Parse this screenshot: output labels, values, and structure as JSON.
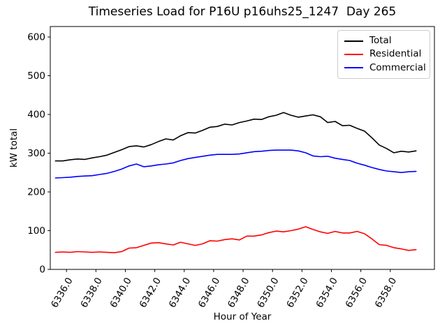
{
  "chart": {
    "title": "Timeseries Load for P16U p16uhs25_1247  Day 265",
    "xlabel": "Hour of Year",
    "ylabel": "kW total"
  },
  "chart_data": {
    "type": "line",
    "title": "Timeseries Load for P16U p16uhs25_1247  Day 265",
    "xlabel": "Hour of Year",
    "ylabel": "kW total",
    "xlim": [
      6334.9,
      6361.0
    ],
    "ylim": [
      0,
      627
    ],
    "grid": false,
    "legend_position": "upper right",
    "x_ticks": [
      6336,
      6338,
      6340,
      6342,
      6344,
      6346,
      6348,
      6350,
      6352,
      6354,
      6356,
      6358
    ],
    "x_tick_labels": [
      "6336.0",
      "6338.0",
      "6340.0",
      "6342.0",
      "6344.0",
      "6346.0",
      "6348.0",
      "6350.0",
      "6352.0",
      "6354.0",
      "6356.0",
      "6358.0"
    ],
    "x_tick_rotation_deg": 60,
    "y_ticks": [
      0,
      100,
      200,
      300,
      400,
      500,
      600
    ],
    "y_tick_labels": [
      "0",
      "100",
      "200",
      "300",
      "400",
      "500",
      "600"
    ],
    "x": [
      6335.25,
      6335.75,
      6336.25,
      6336.75,
      6337.25,
      6337.75,
      6338.25,
      6338.75,
      6339.25,
      6339.75,
      6340.25,
      6340.75,
      6341.25,
      6341.75,
      6342.25,
      6342.75,
      6343.25,
      6343.75,
      6344.25,
      6344.75,
      6345.25,
      6345.75,
      6346.25,
      6346.75,
      6347.25,
      6347.75,
      6348.25,
      6348.75,
      6349.25,
      6349.75,
      6350.25,
      6350.75,
      6351.25,
      6351.75,
      6352.25,
      6352.75,
      6353.25,
      6353.75,
      6354.25,
      6354.75,
      6355.25,
      6355.75,
      6356.25,
      6356.75,
      6357.25,
      6357.75,
      6358.25,
      6358.75,
      6359.25,
      6359.75
    ],
    "series": [
      {
        "name": "Total",
        "color": "#000000",
        "values": [
          280,
          280,
          283,
          285,
          284,
          288,
          291,
          295,
          302,
          309,
          317,
          319,
          316,
          322,
          330,
          337,
          334,
          345,
          353,
          352,
          359,
          367,
          369,
          375,
          373,
          379,
          383,
          388,
          387,
          394,
          398,
          405,
          398,
          393,
          396,
          399,
          394,
          379,
          382,
          371,
          372,
          364,
          357,
          340,
          321,
          312,
          301,
          305,
          303,
          306
        ]
      },
      {
        "name": "Residential",
        "color": "#ff0000",
        "values": [
          44,
          45,
          44,
          46,
          45,
          44,
          45,
          44,
          43,
          46,
          55,
          56,
          62,
          68,
          69,
          66,
          63,
          70,
          66,
          62,
          66,
          74,
          73,
          77,
          79,
          76,
          86,
          86,
          89,
          95,
          99,
          97,
          100,
          104,
          110,
          103,
          97,
          93,
          98,
          94,
          94,
          98,
          92,
          79,
          64,
          62,
          56,
          53,
          49,
          51
        ]
      },
      {
        "name": "Commercial",
        "color": "#0000ff",
        "values": [
          236,
          237,
          238,
          240,
          241,
          242,
          245,
          248,
          253,
          259,
          267,
          272,
          265,
          267,
          270,
          272,
          275,
          281,
          286,
          289,
          292,
          295,
          297,
          297,
          297,
          298,
          301,
          304,
          305,
          307,
          308,
          308,
          308,
          306,
          301,
          293,
          291,
          292,
          287,
          284,
          281,
          274,
          269,
          263,
          258,
          254,
          252,
          250,
          252,
          253
        ]
      }
    ]
  }
}
